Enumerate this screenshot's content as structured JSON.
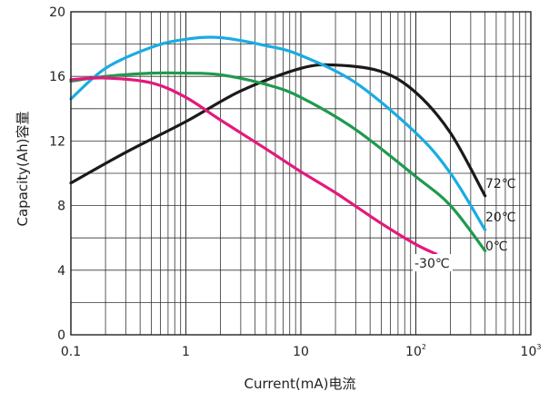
{
  "chart_data": {
    "type": "line",
    "xlabel": "Current(mA)电流",
    "ylabel": "Capacity(Ah)容量",
    "x_scale": "log",
    "xlim": [
      0.1,
      1000
    ],
    "ylim": [
      0,
      20
    ],
    "grid": true,
    "x_ticks": [
      {
        "value": 0.1,
        "label": "0.1"
      },
      {
        "value": 1,
        "label": "1"
      },
      {
        "value": 10,
        "label": "10"
      },
      {
        "value": 100,
        "label": "10",
        "sup": "2"
      },
      {
        "value": 1000,
        "label": "10",
        "sup": "3"
      }
    ],
    "y_ticks": [
      {
        "value": 0,
        "label": "0"
      },
      {
        "value": 4,
        "label": "4"
      },
      {
        "value": 8,
        "label": "8"
      },
      {
        "value": 12,
        "label": "12"
      },
      {
        "value": 16,
        "label": "16"
      },
      {
        "value": 20,
        "label": "20"
      }
    ],
    "series": [
      {
        "name": "72℃",
        "color": "#1a1a1a",
        "x": [
          0.1,
          0.3,
          1,
          3,
          10,
          20,
          50,
          100,
          200,
          400
        ],
        "y": [
          9.4,
          11.3,
          13.2,
          15.1,
          16.5,
          16.7,
          16.3,
          15.0,
          12.5,
          8.6
        ]
      },
      {
        "name": "20℃",
        "color": "#1aabe3",
        "x": [
          0.1,
          0.2,
          0.5,
          1,
          2,
          5,
          10,
          30,
          100,
          200,
          400
        ],
        "y": [
          14.6,
          16.5,
          17.8,
          18.3,
          18.4,
          17.9,
          17.3,
          15.6,
          12.5,
          10.0,
          6.5
        ]
      },
      {
        "name": "0℃",
        "color": "#1e9a4e",
        "x": [
          0.1,
          0.2,
          0.5,
          1,
          2,
          5,
          10,
          30,
          100,
          200,
          400
        ],
        "y": [
          15.7,
          16.0,
          16.2,
          16.2,
          16.1,
          15.5,
          14.7,
          12.7,
          9.8,
          8.0,
          5.2
        ]
      },
      {
        "name": "-30℃",
        "color": "#e3197b",
        "x": [
          0.1,
          0.2,
          0.5,
          1,
          2,
          5,
          10,
          20,
          50,
          100,
          150
        ],
        "y": [
          15.8,
          15.9,
          15.6,
          14.7,
          13.3,
          11.5,
          10.1,
          8.8,
          6.9,
          5.6,
          5.0
        ]
      }
    ]
  }
}
